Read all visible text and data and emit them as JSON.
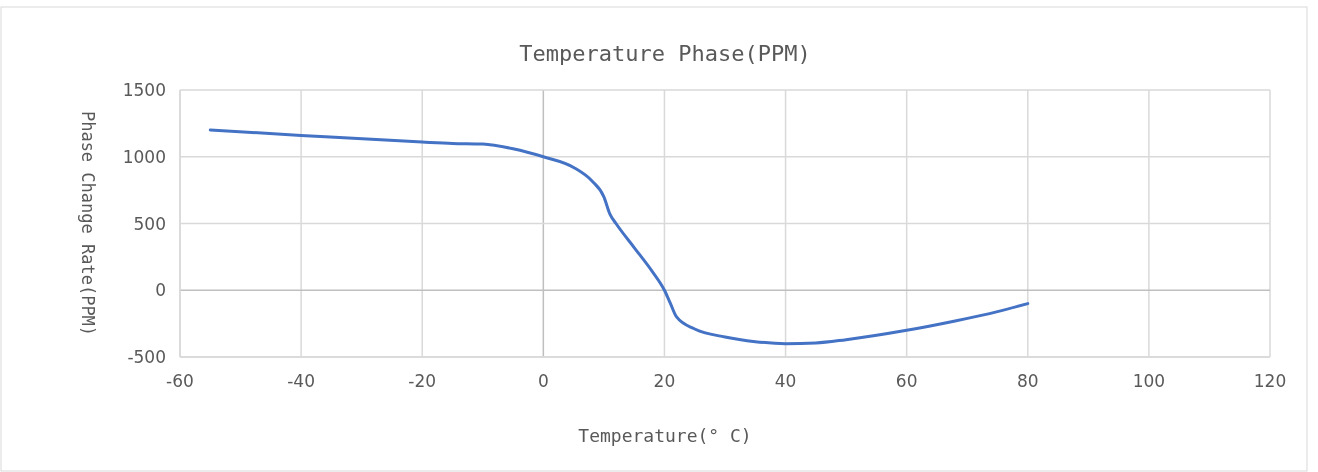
{
  "chart_data": {
    "type": "line",
    "title": "Temperature Phase(PPM)",
    "xlabel": "Temperature(° C)",
    "ylabel": "Phase Change Rate(PPM)",
    "x": [
      -55,
      -40,
      -20,
      -15,
      -10,
      -5,
      0,
      5,
      8,
      10,
      11,
      12,
      15,
      18,
      20,
      21,
      22,
      25,
      30,
      35,
      40,
      45,
      50,
      60,
      68,
      75,
      80
    ],
    "series": [
      {
        "color": "#4472c4",
        "values": [
          1200,
          1160,
          1110,
          1100,
          1095,
          1060,
          1000,
          920,
          820,
          700,
          570,
          500,
          320,
          140,
          0,
          -100,
          -200,
          -290,
          -350,
          -385,
          -400,
          -395,
          -370,
          -300,
          -230,
          -160,
          -100
        ]
      }
    ],
    "xlim": [
      -60,
      120
    ],
    "xticks": [
      -60,
      -40,
      -20,
      0,
      20,
      40,
      60,
      80,
      100,
      120
    ],
    "ylim": [
      -500,
      1500
    ],
    "yticks": [
      -500,
      0,
      500,
      1000,
      1500
    ],
    "grid": true,
    "marker": "none",
    "line_style": "solid"
  }
}
